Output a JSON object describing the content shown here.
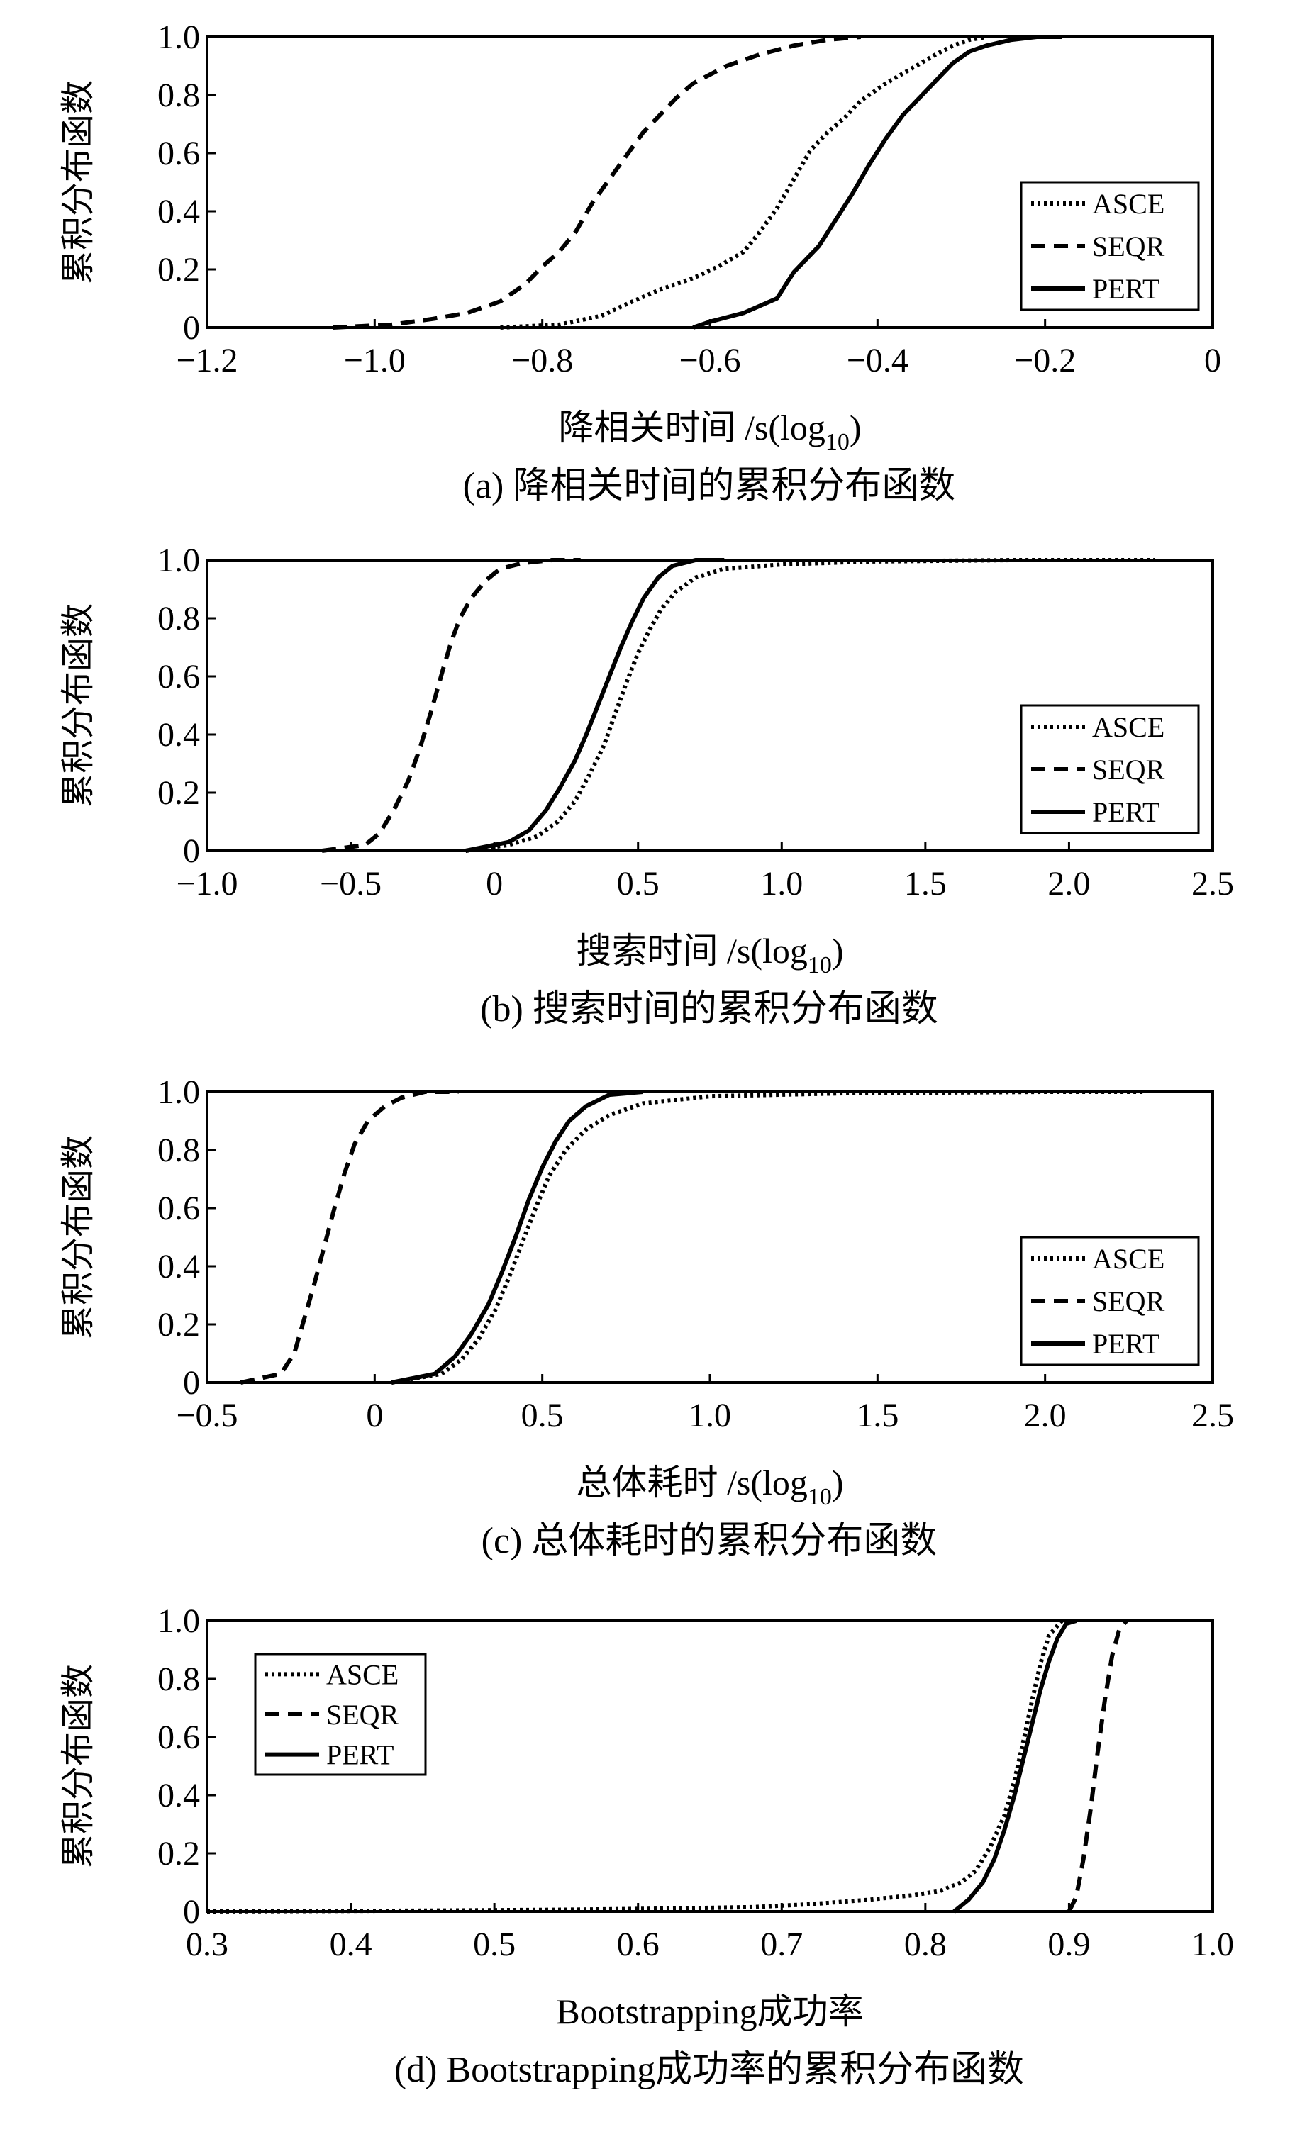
{
  "chart_data": [
    {
      "type": "line",
      "panel": "a",
      "ylabel": "累积分布函数",
      "xlabel_main": "降相关时间 /s(log",
      "xlabel_sub": "10",
      "xlabel_tail": ")",
      "caption": "(a) 降相关时间的累积分布函数",
      "xlim": [
        -1.2,
        0
      ],
      "ylim": [
        0,
        1
      ],
      "xticks": [
        -1.2,
        -1.0,
        -0.8,
        -0.6,
        -0.4,
        -0.2,
        0
      ],
      "xtick_labels": [
        "−1.2",
        "−1.0",
        "−0.8",
        "−0.6",
        "−0.4",
        "−0.2",
        "0"
      ],
      "yticks": [
        0,
        0.2,
        0.4,
        0.6,
        0.8,
        1.0
      ],
      "ytick_labels": [
        "0",
        "0.2",
        "0.4",
        "0.6",
        "0.8",
        "1.0"
      ],
      "legend_position": "right",
      "legend": [
        "ASCE",
        "SEQR",
        "PERT"
      ],
      "series": [
        {
          "name": "ASCE",
          "style": "dotted",
          "x": [
            -0.85,
            -0.78,
            -0.73,
            -0.7,
            -0.66,
            -0.62,
            -0.59,
            -0.56,
            -0.54,
            -0.52,
            -0.5,
            -0.48,
            -0.46,
            -0.44,
            -0.42,
            -0.39,
            -0.36,
            -0.33,
            -0.31,
            -0.29,
            -0.27
          ],
          "y": [
            0,
            0.01,
            0.04,
            0.08,
            0.13,
            0.17,
            0.21,
            0.26,
            0.33,
            0.41,
            0.51,
            0.61,
            0.67,
            0.72,
            0.78,
            0.84,
            0.89,
            0.94,
            0.97,
            0.99,
            1.0
          ]
        },
        {
          "name": "SEQR",
          "style": "dashed",
          "x": [
            -1.05,
            -0.98,
            -0.93,
            -0.89,
            -0.85,
            -0.82,
            -0.8,
            -0.78,
            -0.76,
            -0.74,
            -0.72,
            -0.7,
            -0.68,
            -0.66,
            -0.64,
            -0.62,
            -0.58,
            -0.54,
            -0.5,
            -0.46,
            -0.42
          ],
          "y": [
            0,
            0.01,
            0.03,
            0.05,
            0.09,
            0.15,
            0.21,
            0.26,
            0.33,
            0.43,
            0.51,
            0.59,
            0.67,
            0.73,
            0.79,
            0.84,
            0.9,
            0.94,
            0.97,
            0.99,
            1.0
          ]
        },
        {
          "name": "PERT",
          "style": "solid",
          "x": [
            -0.62,
            -0.6,
            -0.56,
            -0.52,
            -0.5,
            -0.47,
            -0.45,
            -0.43,
            -0.41,
            -0.39,
            -0.37,
            -0.35,
            -0.33,
            -0.31,
            -0.29,
            -0.27,
            -0.24,
            -0.21,
            -0.18
          ],
          "y": [
            0,
            0.02,
            0.05,
            0.1,
            0.19,
            0.28,
            0.37,
            0.46,
            0.56,
            0.65,
            0.73,
            0.79,
            0.85,
            0.91,
            0.95,
            0.97,
            0.99,
            1.0,
            1.0
          ]
        }
      ]
    },
    {
      "type": "line",
      "panel": "b",
      "ylabel": "累积分布函数",
      "xlabel_main": "搜索时间 /s(log",
      "xlabel_sub": "10",
      "xlabel_tail": ")",
      "caption": "(b) 搜索时间的累积分布函数",
      "xlim": [
        -1.0,
        2.5
      ],
      "ylim": [
        0,
        1
      ],
      "xticks": [
        -1.0,
        -0.5,
        0,
        0.5,
        1.0,
        1.5,
        2.0,
        2.5
      ],
      "xtick_labels": [
        "−1.0",
        "−0.5",
        "0",
        "0.5",
        "1.0",
        "1.5",
        "2.0",
        "2.5"
      ],
      "yticks": [
        0,
        0.2,
        0.4,
        0.6,
        0.8,
        1.0
      ],
      "ytick_labels": [
        "0",
        "0.2",
        "0.4",
        "0.6",
        "0.8",
        "1.0"
      ],
      "legend_position": "right",
      "legend": [
        "ASCE",
        "SEQR",
        "PERT"
      ],
      "series": [
        {
          "name": "ASCE",
          "style": "dotted",
          "x": [
            -0.1,
            0.05,
            0.15,
            0.22,
            0.28,
            0.33,
            0.38,
            0.42,
            0.46,
            0.5,
            0.54,
            0.58,
            0.63,
            0.7,
            0.8,
            1.0,
            1.3,
            1.8,
            2.3
          ],
          "y": [
            0,
            0.02,
            0.05,
            0.1,
            0.17,
            0.26,
            0.36,
            0.47,
            0.58,
            0.68,
            0.76,
            0.83,
            0.89,
            0.94,
            0.97,
            0.985,
            0.995,
            1.0,
            1.0
          ]
        },
        {
          "name": "SEQR",
          "style": "dashed",
          "x": [
            -0.6,
            -0.45,
            -0.4,
            -0.35,
            -0.3,
            -0.26,
            -0.22,
            -0.18,
            -0.15,
            -0.12,
            -0.08,
            -0.03,
            0.02,
            0.1,
            0.2,
            0.3
          ],
          "y": [
            0,
            0.02,
            0.06,
            0.14,
            0.24,
            0.35,
            0.48,
            0.62,
            0.72,
            0.8,
            0.87,
            0.93,
            0.97,
            0.99,
            1.0,
            1.0
          ]
        },
        {
          "name": "PERT",
          "style": "solid",
          "x": [
            -0.1,
            0.05,
            0.12,
            0.18,
            0.23,
            0.28,
            0.32,
            0.36,
            0.4,
            0.44,
            0.48,
            0.52,
            0.57,
            0.62,
            0.7,
            0.8
          ],
          "y": [
            0,
            0.03,
            0.07,
            0.14,
            0.22,
            0.31,
            0.4,
            0.5,
            0.6,
            0.7,
            0.79,
            0.87,
            0.94,
            0.98,
            1.0,
            1.0
          ]
        }
      ]
    },
    {
      "type": "line",
      "panel": "c",
      "ylabel": "累积分布函数",
      "xlabel_main": "总体耗时 /s(log",
      "xlabel_sub": "10",
      "xlabel_tail": ")",
      "caption": "(c) 总体耗时的累积分布函数",
      "xlim": [
        -0.5,
        2.5
      ],
      "ylim": [
        0,
        1
      ],
      "xticks": [
        -0.5,
        0,
        0.5,
        1.0,
        1.5,
        2.0,
        2.5
      ],
      "xtick_labels": [
        "−0.5",
        "0",
        "0.5",
        "1.0",
        "1.5",
        "2.0",
        "2.5"
      ],
      "yticks": [
        0,
        0.2,
        0.4,
        0.6,
        0.8,
        1.0
      ],
      "ytick_labels": [
        "0",
        "0.2",
        "0.4",
        "0.6",
        "0.8",
        "1.0"
      ],
      "legend_position": "right",
      "legend": [
        "ASCE",
        "SEQR",
        "PERT"
      ],
      "series": [
        {
          "name": "ASCE",
          "style": "dotted",
          "x": [
            0.05,
            0.2,
            0.26,
            0.31,
            0.36,
            0.4,
            0.44,
            0.48,
            0.52,
            0.57,
            0.63,
            0.7,
            0.8,
            1.0,
            1.4,
            2.0,
            2.3
          ],
          "y": [
            0,
            0.03,
            0.08,
            0.15,
            0.25,
            0.36,
            0.48,
            0.6,
            0.71,
            0.8,
            0.87,
            0.92,
            0.96,
            0.985,
            0.995,
            1.0,
            1.0
          ]
        },
        {
          "name": "SEQR",
          "style": "dashed",
          "x": [
            -0.4,
            -0.28,
            -0.24,
            -0.21,
            -0.18,
            -0.15,
            -0.12,
            -0.09,
            -0.06,
            -0.02,
            0.03,
            0.08,
            0.15,
            0.25
          ],
          "y": [
            0,
            0.03,
            0.1,
            0.22,
            0.34,
            0.47,
            0.6,
            0.72,
            0.82,
            0.9,
            0.95,
            0.98,
            1.0,
            1.0
          ]
        },
        {
          "name": "PERT",
          "style": "solid",
          "x": [
            0.05,
            0.18,
            0.24,
            0.29,
            0.34,
            0.38,
            0.42,
            0.46,
            0.5,
            0.54,
            0.58,
            0.63,
            0.7,
            0.8
          ],
          "y": [
            0,
            0.03,
            0.09,
            0.17,
            0.27,
            0.38,
            0.5,
            0.63,
            0.74,
            0.83,
            0.9,
            0.95,
            0.99,
            1.0
          ]
        }
      ]
    },
    {
      "type": "line",
      "panel": "d",
      "ylabel": "累积分布函数",
      "xlabel_main": "Bootstrapping成功率",
      "xlabel_sub": "",
      "xlabel_tail": "",
      "caption": "(d) Bootstrapping成功率的累积分布函数",
      "xlim": [
        0.3,
        1.0
      ],
      "ylim": [
        0,
        1
      ],
      "xticks": [
        0.3,
        0.4,
        0.5,
        0.6,
        0.7,
        0.8,
        0.9,
        1.0
      ],
      "xtick_labels": [
        "0.3",
        "0.4",
        "0.5",
        "0.6",
        "0.7",
        "0.8",
        "0.9",
        "1.0"
      ],
      "yticks": [
        0,
        0.2,
        0.4,
        0.6,
        0.8,
        1.0
      ],
      "ytick_labels": [
        "0",
        "0.2",
        "0.4",
        "0.6",
        "0.8",
        "1.0"
      ],
      "legend_position": "top-left",
      "legend": [
        "ASCE",
        "SEQR",
        "PERT"
      ],
      "series": [
        {
          "name": "ASCE",
          "style": "dotted",
          "x": [
            0.3,
            0.45,
            0.55,
            0.62,
            0.68,
            0.72,
            0.76,
            0.79,
            0.81,
            0.825,
            0.835,
            0.845,
            0.855,
            0.862,
            0.868,
            0.874,
            0.88,
            0.886,
            0.895
          ],
          "y": [
            0,
            0.003,
            0.006,
            0.01,
            0.015,
            0.025,
            0.04,
            0.055,
            0.07,
            0.1,
            0.14,
            0.22,
            0.33,
            0.45,
            0.58,
            0.72,
            0.85,
            0.95,
            1.0
          ]
        },
        {
          "name": "SEQR",
          "style": "dashed",
          "x": [
            0.9,
            0.905,
            0.91,
            0.915,
            0.92,
            0.925,
            0.93,
            0.935,
            0.94
          ],
          "y": [
            0,
            0.05,
            0.18,
            0.35,
            0.55,
            0.73,
            0.88,
            0.97,
            1.0
          ]
        },
        {
          "name": "PERT",
          "style": "solid",
          "x": [
            0.82,
            0.83,
            0.84,
            0.848,
            0.855,
            0.862,
            0.868,
            0.874,
            0.88,
            0.886,
            0.892,
            0.898,
            0.905
          ],
          "y": [
            0,
            0.04,
            0.1,
            0.18,
            0.28,
            0.4,
            0.52,
            0.64,
            0.76,
            0.86,
            0.94,
            0.99,
            1.0
          ]
        }
      ]
    }
  ]
}
